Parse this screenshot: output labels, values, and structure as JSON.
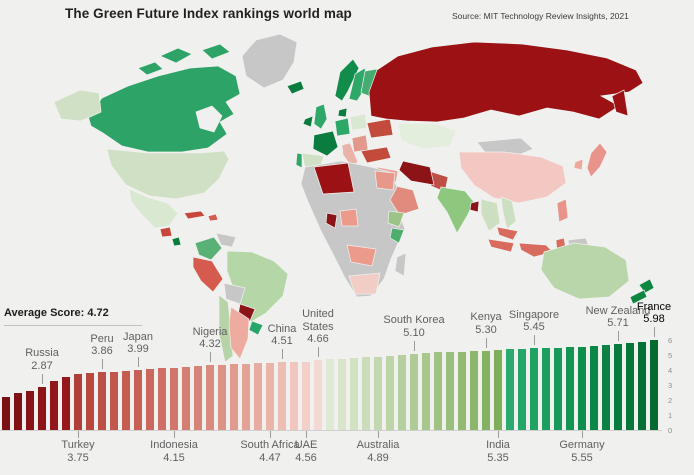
{
  "header": {
    "title": "The Green Future Index rankings world map",
    "source": "Source: MIT Technology Review Insights, 2021"
  },
  "colors": {
    "background": "#f0f1ef",
    "axis_line": "#cfcfcf",
    "pointer_line": "#9a9a9a",
    "label_gray": "#5f5f5f",
    "highlight_label": "#000000"
  },
  "chart_data": {
    "type": "bar",
    "title": "The Green Future Index rankings world map",
    "xlabel": "",
    "ylabel": "",
    "ylim": [
      0,
      6
    ],
    "grid": false,
    "legend": "none",
    "average_label": "Average Score: 4.72",
    "average_score": 4.72,
    "yticks": [
      0,
      1,
      2,
      3,
      4,
      5,
      6
    ],
    "values": [
      2.2,
      2.45,
      2.62,
      2.87,
      3.3,
      3.55,
      3.75,
      3.81,
      3.86,
      3.9,
      3.95,
      3.99,
      4.06,
      4.11,
      4.15,
      4.21,
      4.27,
      4.32,
      4.35,
      4.38,
      4.41,
      4.44,
      4.47,
      4.51,
      4.53,
      4.56,
      4.66,
      4.72,
      4.76,
      4.8,
      4.84,
      4.89,
      4.96,
      5.03,
      5.1,
      5.14,
      5.17,
      5.2,
      5.23,
      5.27,
      5.3,
      5.35,
      5.38,
      5.41,
      5.45,
      5.48,
      5.5,
      5.52,
      5.55,
      5.6,
      5.65,
      5.71,
      5.78,
      5.88,
      5.98
    ],
    "bar_colors": [
      "#7a1013",
      "#811114",
      "#871316",
      "#8c1518",
      "#91171a",
      "#97181c",
      "#b03f39",
      "#b8483f",
      "#bd5046",
      "#c1564c",
      "#c45c52",
      "#c76158",
      "#cb675e",
      "#ce6e64",
      "#d1766b",
      "#d47d72",
      "#d78478",
      "#da8b7f",
      "#dd9286",
      "#e09a8e",
      "#e3a296",
      "#e7ab9f",
      "#eab4a9",
      "#edbdb4",
      "#f0c6be",
      "#f2cfc9",
      "#f4d8d3",
      "#dfe9d4",
      "#d8e5cb",
      "#d1e1c2",
      "#cadcb9",
      "#c3d8b0",
      "#bcd4a7",
      "#b5d09e",
      "#aecb95",
      "#a7c78d",
      "#a0c384",
      "#99bf7c",
      "#92ba73",
      "#8bb66b",
      "#84b262",
      "#7dae5a",
      "#2aaa6e",
      "#25a669",
      "#20a263",
      "#1b9e5e",
      "#169a59",
      "#129453",
      "#0e8e4d",
      "#0b8848",
      "#098243",
      "#077c3e",
      "#067639",
      "#057035",
      "#046a30"
    ],
    "callouts": [
      {
        "name": "Russia",
        "score": "2.87",
        "bar": 3,
        "side": "top"
      },
      {
        "name": "Turkey",
        "score": "3.75",
        "bar": 6,
        "side": "bottom"
      },
      {
        "name": "Peru",
        "score": "3.86",
        "bar": 8,
        "side": "top"
      },
      {
        "name": "Japan",
        "score": "3.99",
        "bar": 11,
        "side": "top"
      },
      {
        "name": "Indonesia",
        "score": "4.15",
        "bar": 14,
        "side": "bottom"
      },
      {
        "name": "Nigeria",
        "score": "4.32",
        "bar": 17,
        "side": "top"
      },
      {
        "name": "South Africa",
        "score": "4.47",
        "bar": 22,
        "side": "bottom"
      },
      {
        "name": "China",
        "score": "4.51",
        "bar": 23,
        "side": "top"
      },
      {
        "name": "UAE",
        "score": "4.56",
        "bar": 25,
        "side": "bottom"
      },
      {
        "name": "United States",
        "score": "4.66",
        "bar": 26,
        "side": "top",
        "wrap": true
      },
      {
        "name": "Australia",
        "score": "4.89",
        "bar": 31,
        "side": "bottom"
      },
      {
        "name": "South Korea",
        "score": "5.10",
        "bar": 34,
        "side": "top"
      },
      {
        "name": "Kenya",
        "score": "5.30",
        "bar": 40,
        "side": "top"
      },
      {
        "name": "India",
        "score": "5.35",
        "bar": 41,
        "side": "bottom"
      },
      {
        "name": "Singapore",
        "score": "5.45",
        "bar": 44,
        "side": "top"
      },
      {
        "name": "Germany",
        "score": "5.55",
        "bar": 48,
        "side": "bottom"
      },
      {
        "name": "New Zealand",
        "score": "5.71",
        "bar": 51,
        "side": "top"
      },
      {
        "name": "France",
        "score": "5.98",
        "bar": 54,
        "side": "top",
        "highlight": true
      }
    ]
  },
  "map": {
    "regions": {
      "ocean": {
        "label": "Ocean",
        "color": "#f0f1ef"
      },
      "greenland": {
        "label": "Greenland",
        "color": "#c7c7c7"
      },
      "canada": {
        "label": "Canada",
        "color": "#2ea367"
      },
      "alaska": {
        "label": "Alaska (US)",
        "color": "#cfe0c5"
      },
      "usa": {
        "label": "United States",
        "color": "#cfe0c5"
      },
      "mexico": {
        "label": "Mexico",
        "color": "#d9e8d0"
      },
      "guatemala": {
        "label": "Guatemala",
        "color": "#c7473a"
      },
      "costa_rica": {
        "label": "Costa Rica",
        "color": "#0a7c3e"
      },
      "cuba": {
        "label": "Cuba",
        "color": "#c7473a"
      },
      "caribbean": {
        "label": "Caribbean",
        "color": "#d45b4d"
      },
      "colombia": {
        "label": "Colombia",
        "color": "#5ab175"
      },
      "venezuela": {
        "label": "Venezuela",
        "color": "#c7c7c7"
      },
      "brazil": {
        "label": "Brazil",
        "color": "#b5d7a7"
      },
      "peru": {
        "label": "Peru",
        "color": "#d45b4d"
      },
      "bolivia": {
        "label": "Bolivia",
        "color": "#c7c7c7"
      },
      "paraguay": {
        "label": "Paraguay",
        "color": "#8c1316"
      },
      "uruguay": {
        "label": "Uruguay",
        "color": "#28a569"
      },
      "chile": {
        "label": "Chile",
        "color": "#b7d3a8"
      },
      "argentina": {
        "label": "Argentina",
        "color": "#eeaca0"
      },
      "iceland": {
        "label": "Iceland",
        "color": "#0a7c3e"
      },
      "ireland": {
        "label": "Ireland",
        "color": "#0a7c3e"
      },
      "uk": {
        "label": "United Kingdom",
        "color": "#2fa768"
      },
      "norway": {
        "label": "Norway",
        "color": "#128c4b"
      },
      "sweden": {
        "label": "Sweden",
        "color": "#2fa768"
      },
      "finland": {
        "label": "Finland",
        "color": "#45ac71"
      },
      "denmark": {
        "label": "Denmark",
        "color": "#0a7c3e"
      },
      "germany": {
        "label": "Germany",
        "color": "#2fa768"
      },
      "poland": {
        "label": "Poland",
        "color": "#d9e8d0"
      },
      "ukraine": {
        "label": "Ukraine",
        "color": "#c24b3b"
      },
      "france": {
        "label": "France",
        "color": "#0a7c3e"
      },
      "spain": {
        "label": "Spain",
        "color": "#cfe0c5"
      },
      "portugal": {
        "label": "Portugal",
        "color": "#2fa768"
      },
      "italy": {
        "label": "Italy",
        "color": "#e9b3aa"
      },
      "balkans": {
        "label": "Balkans",
        "color": "#e2988b"
      },
      "turkey": {
        "label": "Turkey",
        "color": "#c24b3b"
      },
      "russia": {
        "label": "Russia",
        "color": "#9c1113"
      },
      "kazakhstan": {
        "label": "Kazakhstan",
        "color": "#e4eedd"
      },
      "mongolia": {
        "label": "Mongolia",
        "color": "#c7c7c7"
      },
      "china": {
        "label": "China",
        "color": "#f3c8c2"
      },
      "japan": {
        "label": "Japan",
        "color": "#e8948a"
      },
      "south_korea": {
        "label": "South Korea",
        "color": "#eda89c"
      },
      "pakistan": {
        "label": "Pakistan",
        "color": "#bf4f44"
      },
      "iran": {
        "label": "Iran",
        "color": "#8c1316"
      },
      "levant": {
        "label": "Levant",
        "color": "#e8a093"
      },
      "saudi_arabia": {
        "label": "Saudi Arabia",
        "color": "#e08b7d"
      },
      "india": {
        "label": "India",
        "color": "#8ec77e"
      },
      "bangladesh": {
        "label": "Bangladesh",
        "color": "#8c1316"
      },
      "myanmar": {
        "label": "Myanmar",
        "color": "#cce0c1"
      },
      "vietnam": {
        "label": "Vietnam",
        "color": "#cce0c1"
      },
      "philippines": {
        "label": "Philippines",
        "color": "#e8948a"
      },
      "malaysia": {
        "label": "Malaysia",
        "color": "#d96b5e"
      },
      "indonesia": {
        "label": "Indonesia",
        "color": "#d96b5e"
      },
      "papua_new_guinea": {
        "label": "Papua New Guinea",
        "color": "#c7c7c7"
      },
      "africa": {
        "label": "Africa (no data)",
        "color": "#c7c7c7"
      },
      "algeria": {
        "label": "Algeria",
        "color": "#9c1113"
      },
      "egypt": {
        "label": "Egypt",
        "color": "#e8988b"
      },
      "ghana": {
        "label": "Ghana",
        "color": "#8c1316"
      },
      "nigeria": {
        "label": "Nigeria",
        "color": "#ec9a8c"
      },
      "ethiopia": {
        "label": "Ethiopia",
        "color": "#9cc487"
      },
      "kenya": {
        "label": "Kenya",
        "color": "#4fae6e"
      },
      "angola": {
        "label": "Angola/Zambia",
        "color": "#ec9a8c"
      },
      "south_africa": {
        "label": "South Africa",
        "color": "#f2cdc5"
      },
      "madagascar": {
        "label": "Madagascar",
        "color": "#c7c7c7"
      },
      "australia": {
        "label": "Australia",
        "color": "#b9d6ab"
      },
      "new_zealand": {
        "label": "New Zealand",
        "color": "#0c8742"
      }
    }
  }
}
